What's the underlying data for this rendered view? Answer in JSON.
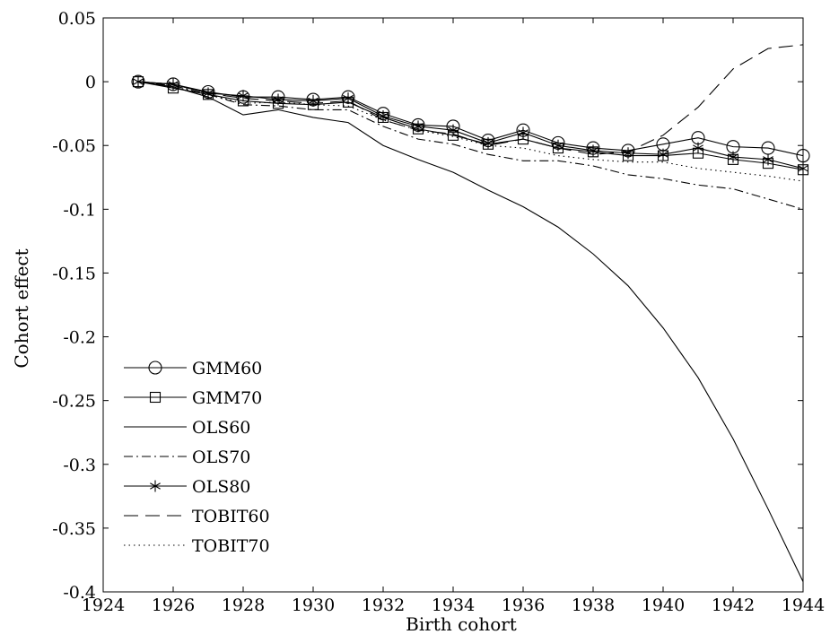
{
  "chart_data": {
    "type": "line",
    "title": "",
    "xlabel": "Birth cohort",
    "ylabel": "Cohort effect",
    "xlim": [
      1924,
      1944
    ],
    "ylim": [
      -0.4,
      0.05
    ],
    "x_ticks": [
      1924,
      1926,
      1928,
      1930,
      1932,
      1934,
      1936,
      1938,
      1940,
      1942,
      1944
    ],
    "x_tick_labels": [
      "1924",
      "1926",
      "1928",
      "1930",
      "1932",
      "1934",
      "1936",
      "1938",
      "1940",
      "1942",
      "1944"
    ],
    "y_ticks": [
      0.05,
      0,
      -0.05,
      -0.1,
      -0.15,
      -0.2,
      -0.25,
      -0.3,
      -0.35,
      -0.4
    ],
    "y_tick_labels": [
      "0.05",
      "0",
      "-0.05",
      "-0.1",
      "-0.15",
      "-0.2",
      "-0.25",
      "-0.3",
      "-0.35",
      "-0.4"
    ],
    "grid": false,
    "legend_position": "bottom-left",
    "x": [
      1925,
      1926,
      1927,
      1928,
      1929,
      1930,
      1931,
      1932,
      1933,
      1934,
      1935,
      1936,
      1937,
      1938,
      1939,
      1940,
      1941,
      1942,
      1943,
      1944
    ],
    "series": [
      {
        "name": "GMM60",
        "style": "solid",
        "marker": "circle",
        "values": [
          0,
          -0.002,
          -0.008,
          -0.012,
          -0.012,
          -0.014,
          -0.012,
          -0.025,
          -0.034,
          -0.035,
          -0.046,
          -0.038,
          -0.048,
          -0.052,
          -0.054,
          -0.049,
          -0.044,
          -0.051,
          -0.052,
          -0.058
        ]
      },
      {
        "name": "GMM70",
        "style": "solid",
        "marker": "square",
        "values": [
          0,
          -0.005,
          -0.01,
          -0.015,
          -0.017,
          -0.018,
          -0.016,
          -0.028,
          -0.037,
          -0.042,
          -0.049,
          -0.045,
          -0.052,
          -0.055,
          -0.058,
          -0.058,
          -0.056,
          -0.061,
          -0.064,
          -0.069
        ]
      },
      {
        "name": "OLS60",
        "style": "solid",
        "marker": "none",
        "values": [
          0,
          -0.004,
          -0.012,
          -0.026,
          -0.022,
          -0.028,
          -0.032,
          -0.05,
          -0.061,
          -0.071,
          -0.085,
          -0.098,
          -0.114,
          -0.135,
          -0.16,
          -0.193,
          -0.232,
          -0.28,
          -0.335,
          -0.392
        ]
      },
      {
        "name": "OLS70",
        "style": "dashdot",
        "marker": "none",
        "values": [
          0,
          -0.003,
          -0.01,
          -0.018,
          -0.019,
          -0.022,
          -0.022,
          -0.035,
          -0.045,
          -0.049,
          -0.057,
          -0.062,
          -0.062,
          -0.066,
          -0.073,
          -0.076,
          -0.081,
          -0.084,
          -0.092,
          -0.1
        ]
      },
      {
        "name": "OLS80",
        "style": "solid",
        "marker": "asterisk",
        "values": [
          0,
          -0.002,
          -0.009,
          -0.011,
          -0.014,
          -0.015,
          -0.013,
          -0.027,
          -0.035,
          -0.038,
          -0.048,
          -0.04,
          -0.05,
          -0.054,
          -0.056,
          -0.057,
          -0.052,
          -0.059,
          -0.061,
          -0.068
        ]
      },
      {
        "name": "TOBIT60",
        "style": "dashed",
        "marker": "none",
        "values": [
          0,
          -0.002,
          -0.009,
          -0.013,
          -0.015,
          -0.017,
          -0.015,
          -0.03,
          -0.038,
          -0.041,
          -0.05,
          -0.045,
          -0.052,
          -0.057,
          -0.055,
          -0.042,
          -0.02,
          0.01,
          0.026,
          0.029
        ]
      },
      {
        "name": "TOBIT70",
        "style": "dotted",
        "marker": "none",
        "values": [
          0,
          -0.004,
          -0.01,
          -0.017,
          -0.016,
          -0.018,
          -0.019,
          -0.03,
          -0.038,
          -0.043,
          -0.05,
          -0.052,
          -0.058,
          -0.061,
          -0.063,
          -0.063,
          -0.068,
          -0.071,
          -0.074,
          -0.078
        ]
      }
    ]
  }
}
